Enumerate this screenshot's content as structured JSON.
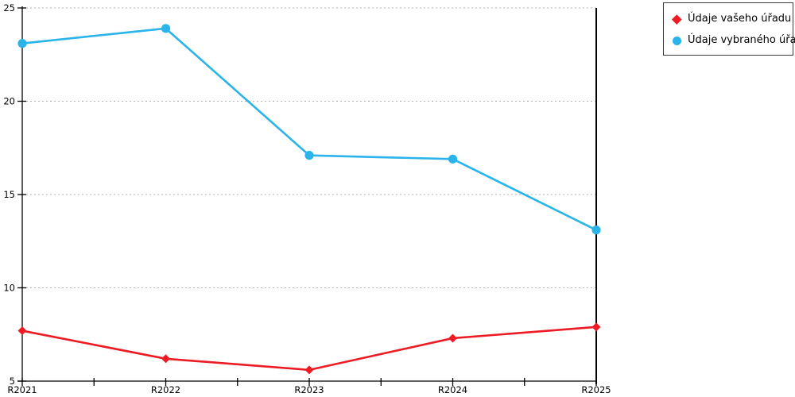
{
  "colors": {
    "series_red": "#ed1c24",
    "series_blue": "#2ab4ea",
    "axis": "#000000",
    "grid": "#b3b3b3",
    "legend_border": "#3a3a3a",
    "background": "#ffffff"
  },
  "legend": {
    "items": [
      {
        "label": "Údaje vašeho úřadu",
        "marker": "diamond",
        "color": "#ed1c24"
      },
      {
        "label": "Údaje vybraného úřadu",
        "marker": "circle",
        "color": "#2ab4ea"
      }
    ]
  },
  "chart_data": {
    "type": "line",
    "title": "",
    "xlabel": "",
    "ylabel": "",
    "categories": [
      "R2021",
      "R2022",
      "R2023",
      "R2024",
      "R2025"
    ],
    "series": [
      {
        "name": "Údaje vašeho úřadu",
        "color": "#ed1c24",
        "marker": "diamond",
        "values": [
          7.7,
          6.2,
          5.6,
          7.3,
          7.9
        ]
      },
      {
        "name": "Údaje vybraného úřadu",
        "color": "#2ab4ea",
        "marker": "circle",
        "values": [
          23.1,
          23.9,
          17.1,
          16.9,
          13.1
        ]
      }
    ],
    "ylim": [
      5,
      25
    ],
    "yticks": [
      5,
      10,
      15,
      20,
      25
    ],
    "x_minor_ticks": "midpoints-between-categories",
    "grid": "horizontal-dashed",
    "legend_position": "top-right"
  }
}
